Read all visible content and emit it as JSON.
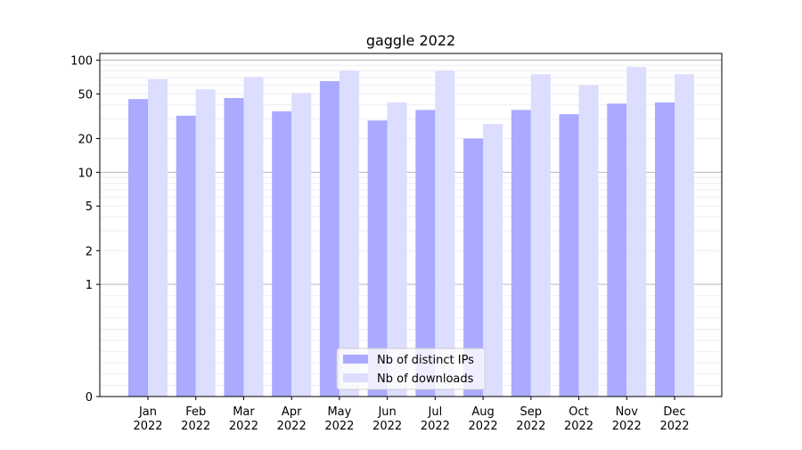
{
  "chart_data": {
    "type": "bar",
    "title": "gaggle 2022",
    "xlabel": "",
    "ylabel": "",
    "yscale": "symlog",
    "ylim": [
      0,
      100
    ],
    "yticks": [
      0,
      1,
      2,
      5,
      10,
      20,
      50,
      100
    ],
    "categories": [
      "Jan\n2022",
      "Feb\n2022",
      "Mar\n2022",
      "Apr\n2022",
      "May\n2022",
      "Jun\n2022",
      "Jul\n2022",
      "Aug\n2022",
      "Sep\n2022",
      "Oct\n2022",
      "Nov\n2022",
      "Dec\n2022"
    ],
    "category_lines": [
      [
        "Jan",
        "2022"
      ],
      [
        "Feb",
        "2022"
      ],
      [
        "Mar",
        "2022"
      ],
      [
        "Apr",
        "2022"
      ],
      [
        "May",
        "2022"
      ],
      [
        "Jun",
        "2022"
      ],
      [
        "Jul",
        "2022"
      ],
      [
        "Aug",
        "2022"
      ],
      [
        "Sep",
        "2022"
      ],
      [
        "Oct",
        "2022"
      ],
      [
        "Nov",
        "2022"
      ],
      [
        "Dec",
        "2022"
      ]
    ],
    "series": [
      {
        "name": "Nb of distinct IPs",
        "color": "#aaaaff",
        "values": [
          45,
          32,
          46,
          35,
          65,
          29,
          36,
          20,
          36,
          33,
          41,
          42
        ]
      },
      {
        "name": "Nb of downloads",
        "color": "#ddddff",
        "values": [
          68,
          55,
          71,
          51,
          81,
          42,
          81,
          27,
          75,
          60,
          87,
          75
        ]
      }
    ],
    "grid": true,
    "legend_position": "bottom-center"
  }
}
